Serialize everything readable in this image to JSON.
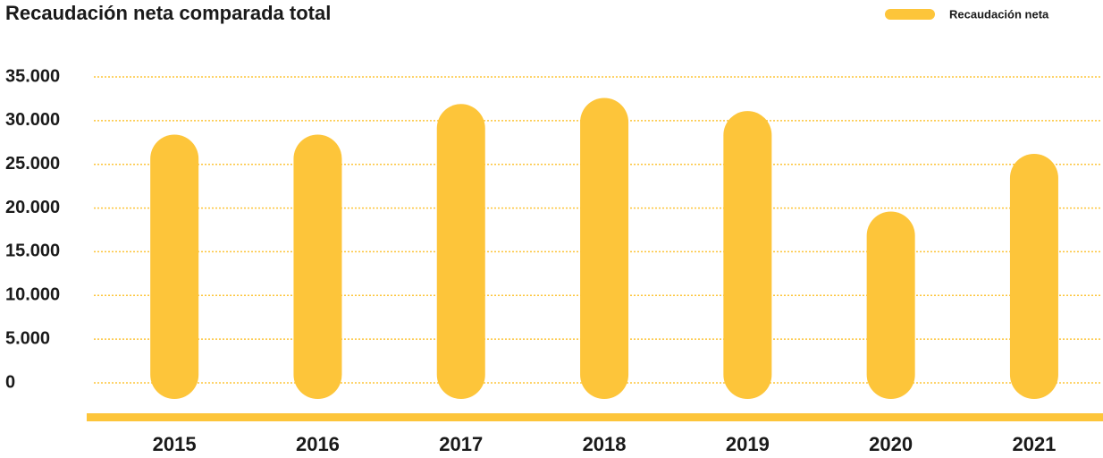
{
  "chart_data": {
    "type": "bar",
    "title": "Recaudación neta comparada total",
    "categories": [
      "2015",
      "2016",
      "2017",
      "2018",
      "2019",
      "2020",
      "2021"
    ],
    "series": [
      {
        "name": "Recaudación neta",
        "color": "#fdc53a",
        "values": [
          28400,
          28400,
          31900,
          32600,
          31100,
          19600,
          26200
        ]
      }
    ],
    "ylim": [
      0,
      35000
    ],
    "yticks": [
      0,
      {
        "value": 5000,
        "label": "5.000"
      },
      {
        "value": 10000,
        "label": "10.000"
      },
      {
        "value": 15000,
        "label": "15.000"
      },
      {
        "value": 20000,
        "label": "20.000"
      },
      {
        "value": 25000,
        "label": "25.000"
      },
      {
        "value": 30000,
        "label": "30.000"
      },
      {
        "value": 35000,
        "label": "35.000"
      }
    ],
    "grid": true,
    "legend": "top-right"
  }
}
